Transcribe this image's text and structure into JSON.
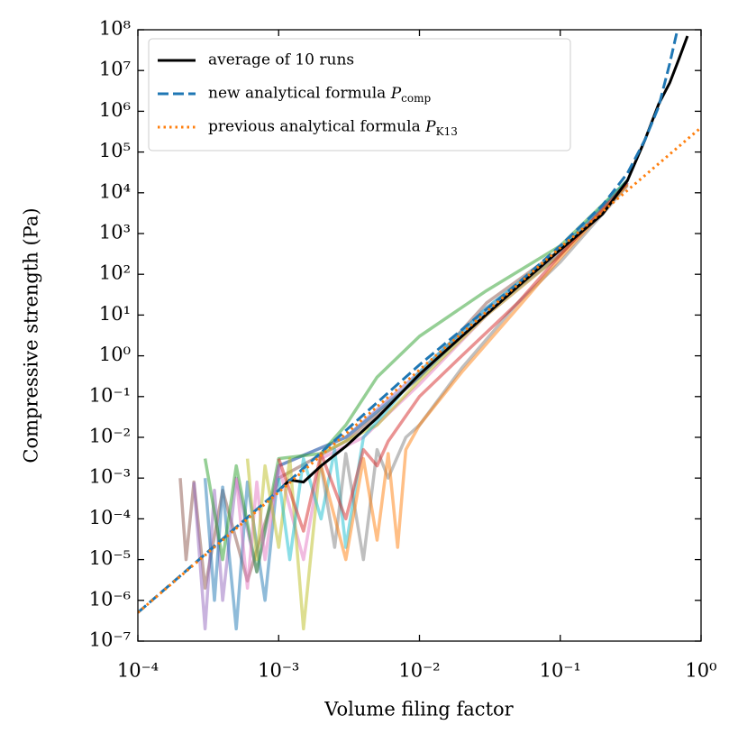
{
  "chart_data": {
    "type": "line",
    "xlabel": "Volume filing factor",
    "ylabel": "Compressive strength (Pa)",
    "xscale": "log",
    "yscale": "log",
    "xlim": [
      0.0001,
      1
    ],
    "ylim": [
      1e-07,
      100000000.0
    ],
    "xticks": [
      {
        "value": 0.0001,
        "label": "10⁻⁴"
      },
      {
        "value": 0.001,
        "label": "10⁻³"
      },
      {
        "value": 0.01,
        "label": "10⁻²"
      },
      {
        "value": 0.1,
        "label": "10⁻¹"
      },
      {
        "value": 1,
        "label": "10⁰"
      }
    ],
    "yticks": [
      {
        "value": 1e-07,
        "label": "10⁻⁷"
      },
      {
        "value": 1e-06,
        "label": "10⁻⁶"
      },
      {
        "value": 1e-05,
        "label": "10⁻⁵"
      },
      {
        "value": 0.0001,
        "label": "10⁻⁴"
      },
      {
        "value": 0.001,
        "label": "10⁻³"
      },
      {
        "value": 0.01,
        "label": "10⁻²"
      },
      {
        "value": 0.1,
        "label": "10⁻¹"
      },
      {
        "value": 1,
        "label": "10⁰"
      },
      {
        "value": 10,
        "label": "10¹"
      },
      {
        "value": 100,
        "label": "10²"
      },
      {
        "value": 1000,
        "label": "10³"
      },
      {
        "value": 10000,
        "label": "10⁴"
      },
      {
        "value": 100000,
        "label": "10⁵"
      },
      {
        "value": 1000000,
        "label": "10⁶"
      },
      {
        "value": 10000000,
        "label": "10⁷"
      },
      {
        "value": 100000000,
        "label": "10⁸"
      }
    ],
    "legend": "upper left",
    "runs": [
      {
        "color": "#8c564b",
        "x": [
          0.0002,
          0.00022,
          0.00025,
          0.0003,
          0.0004,
          0.0006,
          0.001,
          0.003,
          0.01,
          0.03,
          0.1,
          0.3
        ],
        "values": [
          0.001,
          1e-05,
          0.0008,
          2e-06,
          0.0005,
          3e-06,
          0.001,
          0.008,
          0.3,
          20,
          400,
          20000
        ]
      },
      {
        "color": "#9467bd",
        "x": [
          0.00025,
          0.0003,
          0.00035,
          0.0004,
          0.0005,
          0.0007,
          0.001,
          0.003,
          0.01,
          0.03,
          0.1,
          0.3
        ],
        "values": [
          0.0008,
          2e-07,
          0.0005,
          1e-06,
          0.001,
          5e-06,
          0.002,
          0.01,
          0.4,
          15,
          350,
          18000
        ]
      },
      {
        "color": "#1f77b4",
        "x": [
          0.0003,
          0.00035,
          0.0004,
          0.0005,
          0.0006,
          0.0008,
          0.001,
          0.003,
          0.01,
          0.03,
          0.1,
          0.3
        ],
        "values": [
          0.001,
          1e-06,
          0.0006,
          2e-07,
          0.0008,
          1e-06,
          0.002,
          0.01,
          0.3,
          12,
          300,
          17000
        ]
      },
      {
        "color": "#2ca02c",
        "x": [
          0.0003,
          0.0004,
          0.0005,
          0.0007,
          0.001,
          0.002,
          0.003,
          0.005,
          0.01,
          0.03,
          0.1,
          0.3
        ],
        "values": [
          0.003,
          1e-05,
          0.002,
          5e-06,
          0.003,
          0.004,
          0.02,
          0.3,
          3,
          40,
          500,
          20000
        ]
      },
      {
        "color": "#e377c2",
        "x": [
          0.0005,
          0.0006,
          0.0007,
          0.0008,
          0.001,
          0.0015,
          0.002,
          0.004,
          0.01,
          0.03,
          0.1,
          0.3
        ],
        "values": [
          0.001,
          2e-06,
          0.0008,
          1e-05,
          0.002,
          1e-05,
          0.003,
          0.01,
          0.2,
          10,
          300,
          16000
        ]
      },
      {
        "color": "#bcbd22",
        "x": [
          0.0006,
          0.0007,
          0.0008,
          0.001,
          0.0012,
          0.0015,
          0.002,
          0.005,
          0.01,
          0.03,
          0.1,
          0.3
        ],
        "values": [
          0.003,
          1e-05,
          0.002,
          2e-05,
          0.003,
          2e-07,
          0.004,
          0.02,
          0.25,
          10,
          300,
          16000
        ]
      },
      {
        "color": "#17becf",
        "x": [
          0.001,
          0.0012,
          0.0015,
          0.002,
          0.0025,
          0.003,
          0.004,
          0.006,
          0.01,
          0.03,
          0.1,
          0.3
        ],
        "values": [
          0.001,
          1e-05,
          0.003,
          0.0001,
          0.005,
          2e-05,
          0.01,
          0.05,
          0.4,
          15,
          400,
          20000
        ]
      },
      {
        "color": "#7f7f7f",
        "x": [
          0.002,
          0.0025,
          0.003,
          0.004,
          0.005,
          0.006,
          0.008,
          0.01,
          0.02,
          0.05,
          0.1,
          0.3
        ],
        "values": [
          0.002,
          2e-05,
          0.004,
          1e-05,
          0.005,
          0.001,
          0.01,
          0.02,
          0.5,
          20,
          200,
          15000
        ]
      },
      {
        "color": "#ff7f0e",
        "x": [
          0.002,
          0.003,
          0.004,
          0.005,
          0.006,
          0.007,
          0.008,
          0.01,
          0.02,
          0.05,
          0.1,
          0.3
        ],
        "values": [
          0.002,
          1e-05,
          0.003,
          3e-05,
          0.004,
          2e-05,
          0.005,
          0.02,
          0.4,
          15,
          250,
          16000
        ]
      },
      {
        "color": "#d62728",
        "x": [
          0.001,
          0.0015,
          0.002,
          0.003,
          0.004,
          0.005,
          0.006,
          0.01,
          0.02,
          0.05,
          0.1,
          0.3
        ],
        "values": [
          0.003,
          5e-05,
          0.004,
          0.0001,
          0.005,
          0.002,
          0.008,
          0.1,
          1,
          20,
          300,
          18000
        ]
      }
    ],
    "series": [
      {
        "name": "average of 10 runs",
        "color": "#000000",
        "style": "solid",
        "x": [
          0.001,
          0.0012,
          0.0015,
          0.002,
          0.003,
          0.005,
          0.01,
          0.02,
          0.05,
          0.1,
          0.2,
          0.3,
          0.4,
          0.5,
          0.6,
          0.7,
          0.8
        ],
        "values": [
          0.0005,
          0.0009,
          0.0008,
          0.002,
          0.006,
          0.03,
          0.35,
          3,
          50,
          400,
          3000,
          20000,
          200000,
          1500000,
          5000000,
          20000000,
          70000000
        ]
      },
      {
        "name": "new analytical formula Pcomp",
        "color": "#1f77b4",
        "style": "dashed",
        "x": [
          0.0001,
          0.001,
          0.01,
          0.05,
          0.1,
          0.2,
          0.3,
          0.4,
          0.5,
          0.6,
          0.68
        ],
        "values": [
          5e-07,
          0.0005,
          0.6,
          60,
          500,
          5000,
          30000,
          200000,
          1300000,
          15000000,
          100000000
        ]
      },
      {
        "name": "previous analytical formula PK13",
        "color": "#ff7f0e",
        "style": "dotted",
        "x": [
          0.0001,
          0.001,
          0.01,
          0.1,
          1
        ],
        "values": [
          5e-07,
          0.00045,
          0.45,
          450,
          400000
        ]
      }
    ]
  }
}
